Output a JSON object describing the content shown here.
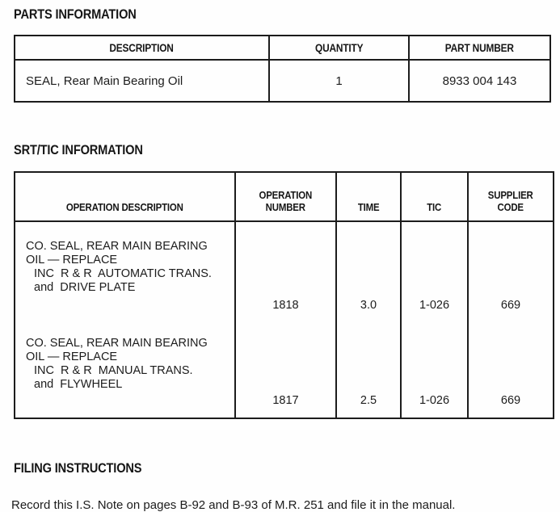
{
  "colors": {
    "text": "#1c1c1c",
    "border": "#1c1c1c",
    "background": "#fefefe"
  },
  "sections": {
    "parts": {
      "title": "PARTS INFORMATION",
      "table": {
        "headers": {
          "description": "DESCRIPTION",
          "quantity": "QUANTITY",
          "part_number": "PART NUMBER"
        },
        "row": {
          "description": "SEAL, Rear Main Bearing Oil",
          "quantity": "1",
          "part_number": "8933 004 143"
        }
      }
    },
    "srt_tic": {
      "title": "SRT/TIC INFORMATION",
      "table": {
        "headers": {
          "operation_description": "OPERATION DESCRIPTION",
          "operation_number_line1": "OPERATION",
          "operation_number_line2": "NUMBER",
          "time": "TIME",
          "tic": "TIC",
          "supplier_code_line1": "SUPPLIER",
          "supplier_code_line2": "CODE"
        },
        "rows": [
          {
            "desc_lines": [
              "CO. SEAL, REAR MAIN BEARING",
              "OIL — REPLACE",
              "INC  R & R  AUTOMATIC TRANS.",
              "and  DRIVE PLATE"
            ],
            "operation_number": "1818",
            "time": "3.0",
            "tic": "1-026",
            "supplier_code": "669"
          },
          {
            "desc_lines": [
              "CO. SEAL, REAR MAIN BEARING",
              "OIL — REPLACE",
              "INC  R & R  MANUAL TRANS.",
              "and  FLYWHEEL"
            ],
            "operation_number": "1817",
            "time": "2.5",
            "tic": "1-026",
            "supplier_code": "669"
          }
        ]
      }
    },
    "filing": {
      "title": "FILING INSTRUCTIONS",
      "text": "Record this I.S. Note on pages B-92 and B-93 of M.R. 251 and file it in the manual."
    }
  }
}
